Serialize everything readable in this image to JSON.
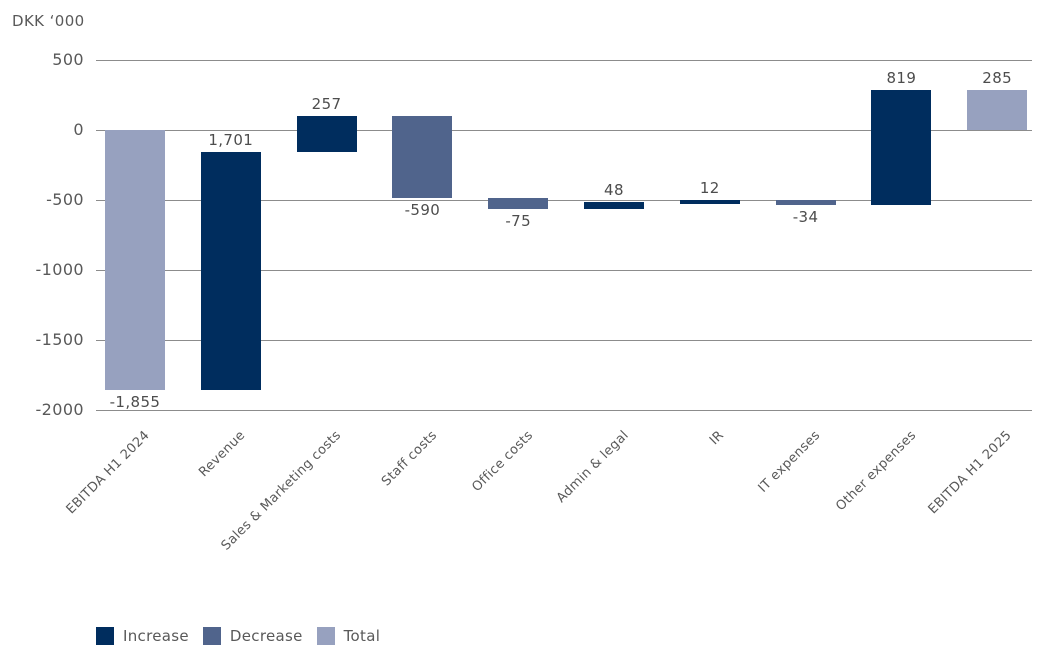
{
  "chart_data": {
    "type": "bar",
    "subtype": "waterfall",
    "title": "DKK ‘000",
    "categories": [
      "EBITDA H1 2024",
      "Revenue",
      "Sales & Marketing costs",
      "Staff costs",
      "Office costs",
      "Admin & legal",
      "IR",
      "IT expenses",
      "Other expenses",
      "EBITDA H1 2025"
    ],
    "bars": [
      {
        "label": "EBITDA H1 2024",
        "value": -1855,
        "display": "-1,855",
        "role": "total"
      },
      {
        "label": "Revenue",
        "value": 1701,
        "display": "1,701",
        "role": "increase"
      },
      {
        "label": "Sales & Marketing costs",
        "value": 257,
        "display": "257",
        "role": "increase"
      },
      {
        "label": "Staff costs",
        "value": -590,
        "display": "-590",
        "role": "decrease"
      },
      {
        "label": "Office costs",
        "value": -75,
        "display": "-75",
        "role": "decrease"
      },
      {
        "label": "Admin & legal",
        "value": 48,
        "display": "48",
        "role": "increase"
      },
      {
        "label": "IR",
        "value": 12,
        "display": "12",
        "role": "increase"
      },
      {
        "label": "IT expenses",
        "value": -34,
        "display": "-34",
        "role": "decrease"
      },
      {
        "label": "Other expenses",
        "value": 819,
        "display": "819",
        "role": "increase"
      },
      {
        "label": "EBITDA H1 2025",
        "value": 285,
        "display": "285",
        "role": "total"
      }
    ],
    "y_axis": {
      "ticks": [
        500,
        0,
        -500,
        -1000,
        -1500,
        -2000
      ],
      "tick_labels": [
        "500",
        "0",
        "-500",
        "-1000",
        "-1500",
        "-2000"
      ],
      "ylim": [
        -2000,
        500
      ],
      "grid": true
    },
    "legend": [
      {
        "label": "Increase",
        "role": "increase"
      },
      {
        "label": "Decrease",
        "role": "decrease"
      },
      {
        "label": "Total",
        "role": "total"
      }
    ],
    "legend_position": "bottom-left",
    "colors": {
      "increase": "#002d5e",
      "decrease": "#50648c",
      "total": "#97a1bf",
      "gridline": "#8c8c8c",
      "axis_text": "#595959",
      "data_label_text": "#4d4d4d",
      "background": "#ffffff"
    }
  }
}
